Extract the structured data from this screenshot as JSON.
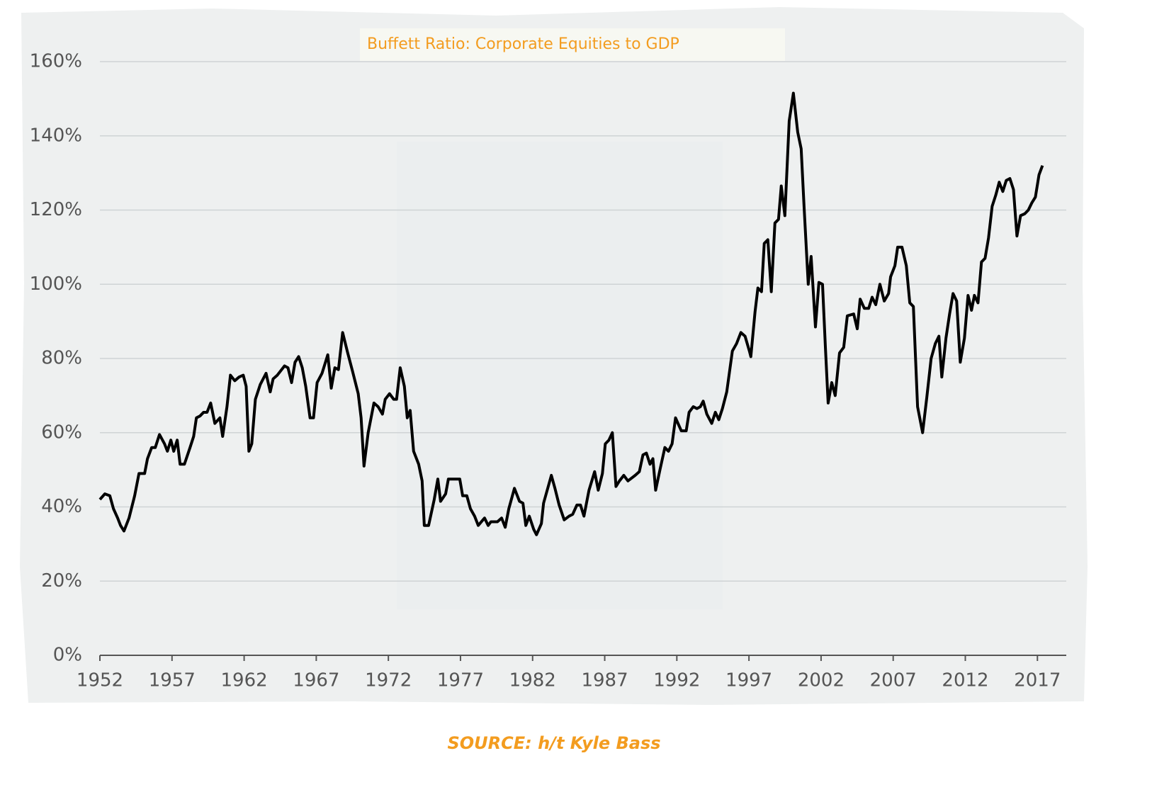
{
  "chart_data": {
    "type": "line",
    "title": "Buffett Ratio: Corporate Equities to GDP",
    "source": "SOURCE: h/t Kyle Bass",
    "color": "#000000",
    "grid": true,
    "xlim": [
      1952,
      2019
    ],
    "xticks": [
      1952,
      1957,
      1962,
      1967,
      1972,
      1977,
      1982,
      1987,
      1992,
      1997,
      2002,
      2007,
      2012,
      2017
    ],
    "ylim": [
      0,
      160
    ],
    "yticks": [
      {
        "value": 0,
        "label": "0%"
      },
      {
        "value": 20,
        "label": "20%"
      },
      {
        "value": 40,
        "label": "40%"
      },
      {
        "value": 60,
        "label": "60%"
      },
      {
        "value": 80,
        "label": "80%"
      },
      {
        "value": 100,
        "label": "100%"
      },
      {
        "value": 120,
        "label": "120%"
      },
      {
        "value": 140,
        "label": "140%"
      },
      {
        "value": 160,
        "label": "160%"
      }
    ],
    "x": [
      1952.0,
      1952.34,
      1952.69,
      1952.94,
      1953.23,
      1953.43,
      1953.67,
      1954.02,
      1954.41,
      1954.71,
      1955.1,
      1955.3,
      1955.59,
      1955.84,
      1956.13,
      1956.48,
      1956.68,
      1956.92,
      1957.12,
      1957.36,
      1957.56,
      1957.86,
      1958.25,
      1958.5,
      1958.69,
      1958.94,
      1959.19,
      1959.43,
      1959.68,
      1959.97,
      1960.32,
      1960.51,
      1960.81,
      1961.05,
      1961.35,
      1961.65,
      1961.94,
      1962.14,
      1962.33,
      1962.53,
      1962.78,
      1963.12,
      1963.52,
      1963.81,
      1964.01,
      1964.3,
      1964.8,
      1965.04,
      1965.29,
      1965.53,
      1965.78,
      1966.03,
      1966.27,
      1966.57,
      1966.81,
      1967.06,
      1967.4,
      1967.8,
      1968.04,
      1968.29,
      1968.54,
      1968.83,
      1969.18,
      1969.52,
      1969.91,
      1970.11,
      1970.31,
      1970.6,
      1971.0,
      1971.29,
      1971.59,
      1971.78,
      1972.08,
      1972.37,
      1972.57,
      1972.82,
      1973.11,
      1973.31,
      1973.51,
      1973.75,
      1974.1,
      1974.34,
      1974.49,
      1974.79,
      1975.18,
      1975.43,
      1975.62,
      1975.97,
      1976.16,
      1976.56,
      1976.95,
      1977.15,
      1977.44,
      1977.69,
      1977.98,
      1978.23,
      1978.67,
      1978.92,
      1979.11,
      1979.56,
      1979.85,
      1980.1,
      1980.35,
      1980.74,
      1981.09,
      1981.33,
      1981.53,
      1981.77,
      1982.07,
      1982.27,
      1982.61,
      1982.76,
      1983.3,
      1983.55,
      1983.84,
      1984.19,
      1984.53,
      1984.78,
      1985.07,
      1985.32,
      1985.56,
      1985.91,
      1986.3,
      1986.55,
      1986.84,
      1987.04,
      1987.29,
      1987.53,
      1987.78,
      1988.02,
      1988.32,
      1988.61,
      1989.11,
      1989.4,
      1989.65,
      1989.89,
      1990.14,
      1990.34,
      1990.53,
      1990.83,
      1991.17,
      1991.42,
      1991.67,
      1991.91,
      1992.31,
      1992.65,
      1992.85,
      1993.14,
      1993.39,
      1993.63,
      1993.83,
      1994.08,
      1994.42,
      1994.67,
      1994.91,
      1995.16,
      1995.46,
      1995.85,
      1996.14,
      1996.44,
      1996.73,
      1997.03,
      1997.13,
      1997.42,
      1997.62,
      1997.87,
      1998.06,
      1998.31,
      1998.55,
      1998.8,
      1999.05,
      1999.24,
      1999.49,
      1999.79,
      2000.08,
      2000.38,
      2000.62,
      2000.82,
      2001.11,
      2001.31,
      2001.61,
      2001.85,
      2002.1,
      2002.3,
      2002.49,
      2002.74,
      2002.98,
      2003.28,
      2003.57,
      2003.82,
      2004.26,
      2004.51,
      2004.71,
      2005.0,
      2005.3,
      2005.54,
      2005.79,
      2006.08,
      2006.38,
      2006.68,
      2006.82,
      2007.12,
      2007.31,
      2007.61,
      2007.91,
      2008.15,
      2008.4,
      2008.69,
      2009.04,
      2009.33,
      2009.63,
      2009.92,
      2010.17,
      2010.37,
      2010.66,
      2010.91,
      2011.15,
      2011.4,
      2011.65,
      2011.94,
      2012.19,
      2012.43,
      2012.63,
      2012.88,
      2013.12,
      2013.37,
      2013.61,
      2013.86,
      2014.11,
      2014.35,
      2014.6,
      2014.84,
      2015.09,
      2015.34,
      2015.58,
      2015.83,
      2016.12,
      2016.37,
      2016.62,
      2016.86,
      2017.11,
      2017.35
    ],
    "values": [
      42,
      43.5,
      43,
      39.5,
      37,
      35,
      33.5,
      37,
      43,
      49,
      49,
      53,
      56,
      56,
      59.5,
      57,
      55,
      58,
      55,
      58,
      51.5,
      51.5,
      56,
      59,
      64,
      64.5,
      65.5,
      65.5,
      68,
      62.5,
      64,
      59,
      67,
      75.5,
      74,
      75,
      75.5,
      72.5,
      55,
      57,
      69,
      73,
      76,
      71,
      74.5,
      75.5,
      78,
      77.5,
      73.5,
      79,
      80.5,
      77.5,
      72.5,
      64,
      64,
      73.5,
      76,
      81,
      72,
      77.5,
      77,
      87,
      81.5,
      76.5,
      70.5,
      64,
      51,
      60,
      68,
      67,
      65,
      69,
      70.5,
      69,
      69,
      77.5,
      72.5,
      64,
      66,
      55,
      51.5,
      47,
      35,
      35,
      42,
      47.5,
      41.5,
      43.5,
      47.5,
      47.5,
      47.5,
      43,
      43,
      39.5,
      37.5,
      35,
      37,
      35,
      36,
      36,
      37,
      34.5,
      39.5,
      45,
      41.5,
      41,
      35,
      37.5,
      34,
      32.5,
      35.5,
      41,
      48.5,
      45,
      40.5,
      36.5,
      37.5,
      38,
      40.5,
      40.5,
      37.5,
      44.5,
      49.5,
      44.5,
      49,
      57,
      58,
      60,
      45.5,
      47,
      48.5,
      47,
      48.5,
      49.5,
      54,
      54.5,
      51.5,
      53,
      44.5,
      50,
      56,
      55,
      57,
      64,
      60.5,
      60.5,
      65.5,
      67,
      66.5,
      67,
      68.5,
      65,
      62.5,
      65.5,
      63.5,
      66.5,
      71,
      82,
      84,
      87,
      86,
      82,
      80.5,
      92.5,
      99,
      98,
      111,
      112,
      98,
      116.5,
      117.5,
      126.5,
      118.5,
      144,
      151.5,
      141,
      136.5,
      121,
      100,
      107.5,
      88.5,
      100.5,
      100,
      83,
      68,
      73.5,
      70,
      81.5,
      83,
      91.5,
      92,
      88,
      96,
      93.5,
      93.5,
      96.5,
      94.5,
      100,
      95.5,
      97.5,
      102,
      105,
      110,
      110,
      105,
      95,
      94,
      67,
      60,
      69.5,
      80,
      84,
      86,
      75,
      85.5,
      92,
      97.5,
      95.5,
      79,
      85.5,
      97,
      93,
      97,
      95,
      106,
      107,
      112.5,
      121,
      124,
      127.5,
      125,
      128,
      128.5,
      125.5,
      113,
      118.5,
      119,
      120,
      122,
      123.5,
      129.5,
      132
    ]
  }
}
